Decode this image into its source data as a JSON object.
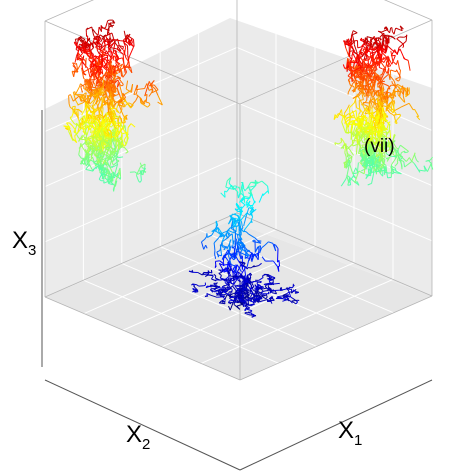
{
  "chart_data": {
    "type": "scatter",
    "projection": "3d",
    "panel_label": "(vii)",
    "axes": {
      "x1": {
        "label": "X",
        "subscript": "1"
      },
      "x2": {
        "label": "X",
        "subscript": "2"
      },
      "x3": {
        "label": "X",
        "subscript": "3"
      }
    },
    "grid": true,
    "colormap": "jet",
    "color_by": "X3",
    "series": [
      {
        "x1": 0.15,
        "x2": 0.85,
        "x3_range": [
          0.45,
          0.95
        ]
      },
      {
        "x1": 0.85,
        "x2": 0.15,
        "x3_range": [
          0.45,
          0.95
        ]
      },
      {
        "x1": 0.45,
        "x2": 0.45,
        "x3_range": [
          0.0,
          0.45
        ]
      },
      {
        "x1": 0.5,
        "x2": 0.5,
        "x3_range": [
          0.0,
          0.05
        ]
      }
    ]
  },
  "colors": {
    "background": "#ffffff",
    "pane": "#ebebeb",
    "grid": "#ffffff",
    "edge": "#b5b5b5"
  }
}
